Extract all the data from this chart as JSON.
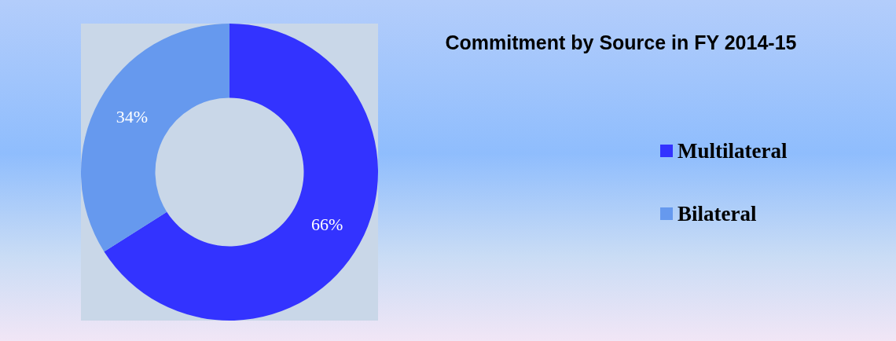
{
  "chart_data": {
    "type": "donut",
    "title": "Commitment by Source in FY 2014-15",
    "categories": [
      "Multilateral",
      "Bilateral"
    ],
    "values": [
      66,
      34
    ],
    "colors": [
      "#3333ff",
      "#6699ee"
    ],
    "value_labels": [
      "66%",
      "34%"
    ],
    "legend": "right"
  }
}
